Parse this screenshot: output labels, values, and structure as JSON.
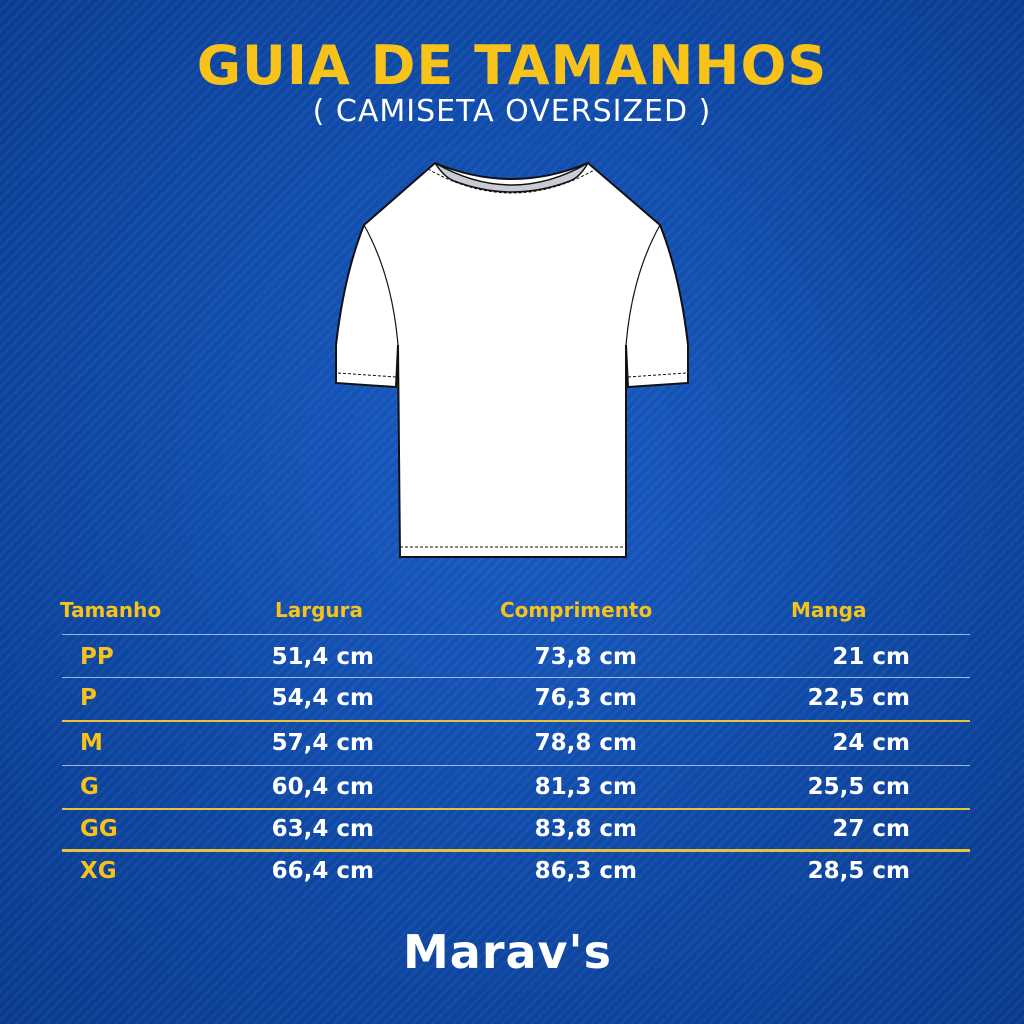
{
  "title": "GUIA DE TAMANHOS",
  "subtitle": "( CAMISETA OVERSIZED )",
  "table": {
    "headers": [
      "Tamanho",
      "Largura",
      "Comprimento",
      "Manga"
    ],
    "rows": [
      {
        "size": "PP",
        "largura": "51,4 cm",
        "comprimento": "73,8 cm",
        "manga": "21 cm"
      },
      {
        "size": "P",
        "largura": "54,4 cm",
        "comprimento": "76,3 cm",
        "manga": "22,5 cm"
      },
      {
        "size": "M",
        "largura": "57,4 cm",
        "comprimento": "78,8 cm",
        "manga": "24 cm"
      },
      {
        "size": "G",
        "largura": "60,4 cm",
        "comprimento": "81,3 cm",
        "manga": "25,5 cm"
      },
      {
        "size": "GG",
        "largura": "63,4 cm",
        "comprimento": "83,8 cm",
        "manga": "27 cm"
      },
      {
        "size": "XG",
        "largura": "66,4 cm",
        "comprimento": "86,3 cm",
        "manga": "28,5 cm"
      }
    ]
  },
  "brand": "Marav's",
  "colors": {
    "accent": "#f7c21a",
    "background": "#0f4aa8",
    "text": "#ffffff"
  }
}
